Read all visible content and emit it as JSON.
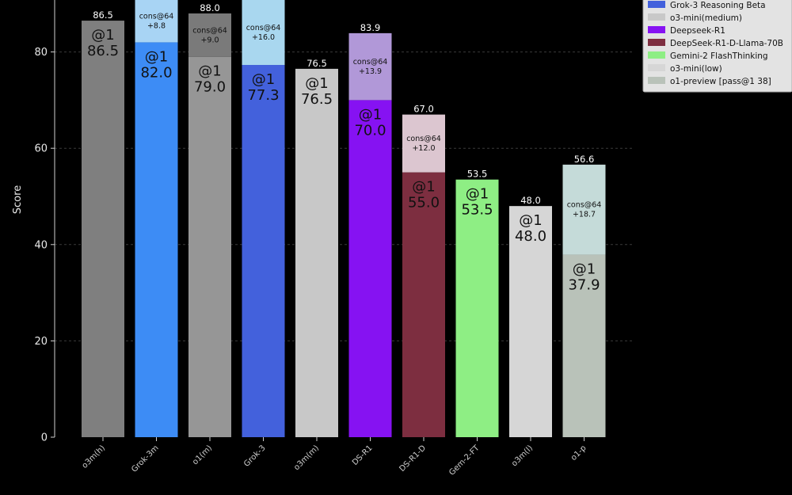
{
  "chart_data": {
    "type": "bar",
    "ylabel": "Score",
    "ylim": [
      0,
      90
    ],
    "yticks": [
      0,
      20,
      40,
      60,
      80
    ],
    "grid": "horizontal dashed",
    "legend_position": "top-right",
    "categories": [
      "o3m(h)",
      "Grok-3m",
      "o1(m)",
      "Grok-3",
      "o3m(m)",
      "DS-R1",
      "DS-R1-D",
      "Gem-2-FT",
      "o3m(l)",
      "o1-p"
    ],
    "series": [
      {
        "name": "pass@1",
        "values": [
          86.5,
          82.0,
          79.0,
          77.3,
          76.5,
          70.0,
          55.0,
          53.5,
          48.0,
          37.9
        ],
        "in_bar_labels": [
          "@1\n86.5",
          "@1\n82.0",
          "@1\n79.0",
          "@1\n77.3",
          "@1\n76.5",
          "@1\n70.0",
          "@1\n55.0",
          "@1\n53.5",
          "@1\n48.0",
          "@1\n37.9"
        ]
      },
      {
        "name": "cons@64 increment",
        "values": [
          0,
          8.8,
          9.0,
          16.0,
          0,
          13.9,
          12.0,
          0,
          0,
          18.7
        ],
        "in_bar_labels": [
          "",
          "cons@64\n+8.8",
          "cons@64\n+9.0",
          "cons@64\n+16.0",
          "",
          "cons@64\n+13.9",
          "cons@64\n+12.0",
          "",
          "",
          "cons@64\n+18.7"
        ]
      }
    ],
    "bar_top_labels": [
      "86.5",
      "",
      "88.0",
      "",
      "76.5",
      "83.9",
      "67.0",
      "53.5",
      "48.0",
      "56.6"
    ],
    "bar_colors": [
      "#7f7f7f",
      "#3d8cf5",
      "#969696",
      "#4361dc",
      "#c8c8c8",
      "#8612f2",
      "#7d2e40",
      "#8eee84",
      "#d6d6d6",
      "#b9c2b9"
    ],
    "cons_colors": [
      "",
      "#a8d4f4",
      "#7a7a7a",
      "#a9d7ef",
      "",
      "#b198d8",
      "#dcc6d0",
      "",
      "",
      "#c5dbd9"
    ],
    "legend": [
      {
        "label": "Grok-3 Reasoning Beta",
        "color": "#4361dc"
      },
      {
        "label": "o3-mini(medium)",
        "color": "#c8c8c8"
      },
      {
        "label": "Deepseek-R1",
        "color": "#8612f2"
      },
      {
        "label": "DeepSeek-R1-D-Llama-70B",
        "color": "#7d2e40"
      },
      {
        "label": "Gemini-2 FlashThinking",
        "color": "#8eee84"
      },
      {
        "label": "o3-mini(low)",
        "color": "#d6d6d6"
      },
      {
        "label": "o1-preview [pass@1 38]",
        "color": "#b9c2b9"
      }
    ]
  }
}
